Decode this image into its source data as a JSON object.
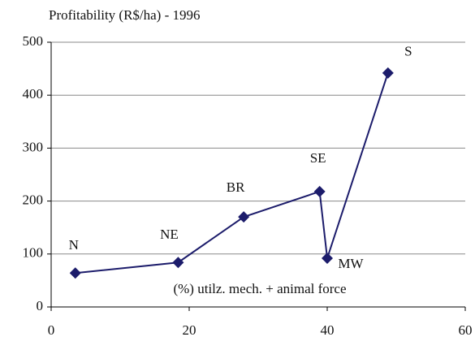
{
  "chart_data": {
    "type": "line",
    "title": "Profitability (R$/ha) - 1996",
    "annotation": "(%) utilz. mech. + animal force",
    "series": [
      {
        "name": null,
        "color": "#1c1c6b",
        "x": [
          3.5,
          18.4,
          27.9,
          38.9,
          40,
          48.8
        ],
        "values": [
          64,
          84,
          170,
          218,
          92,
          442
        ],
        "labels": [
          "N",
          "NE",
          "BR",
          "SE",
          "MW",
          "S"
        ]
      }
    ],
    "xlim": [
      0,
      60
    ],
    "xticks": [
      0,
      20,
      40,
      60
    ],
    "ylim": [
      0,
      500
    ],
    "yticks": [
      0,
      100,
      200,
      300,
      400,
      500
    ],
    "grid": true
  }
}
